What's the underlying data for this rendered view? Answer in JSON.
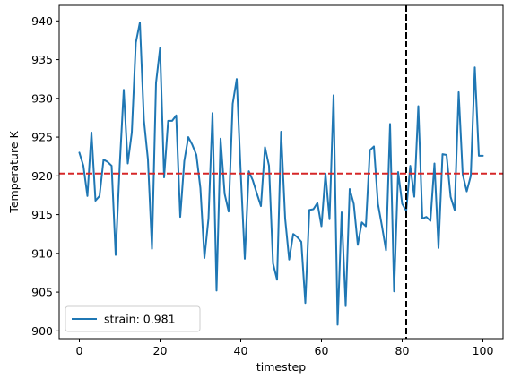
{
  "chart_data": {
    "type": "line",
    "xlabel": "timestep",
    "ylabel": "Temperature K",
    "xlim": [
      -5,
      105
    ],
    "ylim": [
      899,
      942
    ],
    "xticks": [
      0,
      20,
      40,
      60,
      80,
      100
    ],
    "yticks": [
      900,
      905,
      910,
      915,
      920,
      925,
      930,
      935,
      940
    ],
    "grid": false,
    "legend_position": "lower left",
    "series": [
      {
        "name": "strain: 0.981",
        "color": "#1f77b4",
        "x": [
          0,
          1,
          2,
          3,
          4,
          5,
          6,
          7,
          8,
          9,
          10,
          11,
          12,
          13,
          14,
          15,
          16,
          17,
          18,
          19,
          20,
          21,
          22,
          23,
          24,
          25,
          26,
          27,
          28,
          29,
          30,
          31,
          32,
          33,
          34,
          35,
          36,
          37,
          38,
          39,
          40,
          41,
          42,
          43,
          44,
          45,
          46,
          47,
          48,
          49,
          50,
          51,
          52,
          53,
          54,
          55,
          56,
          57,
          58,
          59,
          60,
          61,
          62,
          63,
          64,
          65,
          66,
          67,
          68,
          69,
          70,
          71,
          72,
          73,
          74,
          75,
          76,
          77,
          78,
          79,
          80,
          81,
          82,
          83,
          84,
          85,
          86,
          87,
          88,
          89,
          90,
          91,
          92,
          93,
          94,
          95,
          96,
          97,
          98,
          99,
          100
        ],
        "y": [
          923.0,
          921.3,
          917.4,
          925.6,
          916.8,
          917.4,
          922.1,
          921.8,
          921.3,
          909.8,
          921.3,
          931.1,
          921.6,
          925.6,
          937.2,
          939.8,
          927.2,
          922.1,
          910.6,
          932.0,
          936.5,
          919.8,
          927.1,
          927.1,
          927.8,
          914.7,
          921.9,
          925.0,
          924.0,
          922.7,
          918.4,
          909.4,
          914.5,
          928.1,
          905.2,
          924.8,
          917.7,
          915.4,
          929.3,
          932.5,
          920.3,
          909.3,
          920.6,
          919.4,
          917.7,
          916.1,
          923.7,
          921.3,
          908.7,
          906.6,
          925.7,
          914.5,
          909.2,
          912.5,
          912.1,
          911.5,
          903.6,
          915.6,
          915.7,
          916.5,
          913.5,
          920.3,
          914.4,
          930.4,
          900.8,
          915.3,
          903.2,
          918.3,
          916.4,
          911.1,
          914.0,
          913.5,
          923.3,
          923.8,
          916.4,
          913.5,
          910.4,
          926.7,
          905.1,
          920.5,
          916.4,
          915.5,
          921.3,
          917.3,
          929.0,
          914.5,
          914.7,
          914.2,
          921.6,
          910.7,
          922.8,
          922.7,
          917.3,
          915.6,
          930.8,
          920.2,
          918.0,
          920.0,
          934.0,
          922.6,
          922.6
        ]
      }
    ],
    "reference_lines": [
      {
        "orientation": "horizontal",
        "value": 920.3,
        "color": "#d62728",
        "style": "dashed"
      },
      {
        "orientation": "vertical",
        "value": 81,
        "color": "#000000",
        "style": "dashed"
      }
    ]
  }
}
